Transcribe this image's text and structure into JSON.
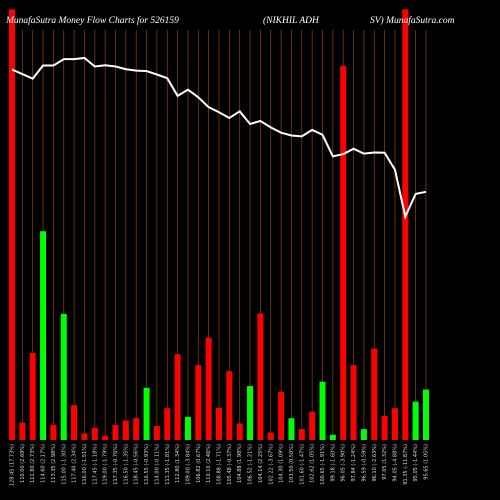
{
  "header": {
    "left": "MunafaSutra  Money Flow  Charts for 526159",
    "middle": "(NIKHIL  ADH",
    "right": "SV) MunafaSutra.com"
  },
  "colors": {
    "background": "#000000",
    "up": "#00ff00",
    "down": "#ff0000",
    "grid": "#8b4513",
    "line": "#ffffff"
  },
  "chart_data": {
    "type": "bar",
    "title": "MunafaSutra  Money Flow  Charts for 526159 (NIKHIL  ADH SV) MunafaSutra.com",
    "categories": [
      "128.45 (17.73%)",
      "110.00 (2.69%)",
      "111.80 (2.73%)",
      "114.60 (2.17%)",
      "113.35 (2.98%)",
      "115.00 (-1.30%)",
      "117.40 (2.34%)",
      "116.00 (-1.51%)",
      "117.45 (-1.18%)",
      "119.00 (-1.79%)",
      "117.35 (-0.76%)",
      "116.50 (-1.35%)",
      "118.45 (-0.56%)",
      "116.55 (-0.93%)",
      "114.00 (-0.11%)",
      "111.35 (-1.81%)",
      "112.80 (1.34%)",
      "109.00 (-3.84%)",
      "106.82 (0.67%)",
      "110.10 (2.46%)",
      "108.88 (-1.71%)",
      "105.48 (-0.37%)",
      "104.88 (1.98%)",
      "106.52 (-1.21%)",
      "104.14 (2.25%)",
      "102.22 (-3.67%)",
      "104.30 (1.09%)",
      "103.50 (0.50%)",
      "101.60 (-1.47%)",
      "102.62 (1.05%)",
      "100.65 (-1.91%)",
      "99.18 (-1.60%)",
      "96.05 (-3.90%)",
      "97.84 (-1.24%)",
      "96.59 (-0.59%)",
      "96.10 (-2.63%)",
      "97.05 (1.32%)",
      "94.05 (-4.88%)",
      "91.35 (-11.87%)",
      "95.05 (-1.44%)",
      "95.65 (1.05%)"
    ],
    "series": [
      {
        "values": [
          99.0,
          4,
          20,
          48,
          3.5,
          29,
          8,
          1.5,
          2.8,
          1,
          3.5,
          4.5,
          5,
          12,
          3.2,
          7.3,
          19.7,
          5.3,
          17.2,
          23.5,
          7.4,
          15.8,
          3.8,
          12.4,
          29.1,
          1.7,
          11.1,
          5,
          2.5,
          6.5,
          13.4,
          1.2,
          86.0,
          17.2,
          2.5,
          21,
          5.5,
          7.3,
          99.0,
          8.8,
          11.6
        ]
      },
      {
        "values": [
          128.45,
          126.5,
          124.5,
          130.2,
          130.2,
          133.0,
          133.0,
          133.5,
          129.8,
          130.3,
          129.8,
          128.6,
          128.0,
          127.8,
          126.3,
          124.7,
          117.0,
          119.7,
          116.4,
          112.1,
          109.9,
          107.4,
          110.3,
          104.8,
          106.1,
          103.3,
          101.0,
          99.8,
          99.4,
          102.2,
          100.1,
          90.7,
          91.7,
          94.0,
          91.9,
          92.4,
          92.3,
          84.9,
          64.5,
          74.4,
          75.3
        ]
      }
    ],
    "bar_direction": [
      "down",
      "down",
      "down",
      "up",
      "down",
      "up",
      "down",
      "down",
      "down",
      "down",
      "down",
      "down",
      "down",
      "up",
      "down",
      "down",
      "down",
      "up",
      "down",
      "down",
      "down",
      "down",
      "down",
      "up",
      "down",
      "down",
      "down",
      "up",
      "down",
      "down",
      "up",
      "up",
      "down",
      "down",
      "up",
      "down",
      "down",
      "down",
      "down",
      "up",
      "up"
    ],
    "flow_bar_ylim": [
      0,
      100
    ],
    "price_ylim": [
      50,
      150
    ],
    "grid": true
  }
}
